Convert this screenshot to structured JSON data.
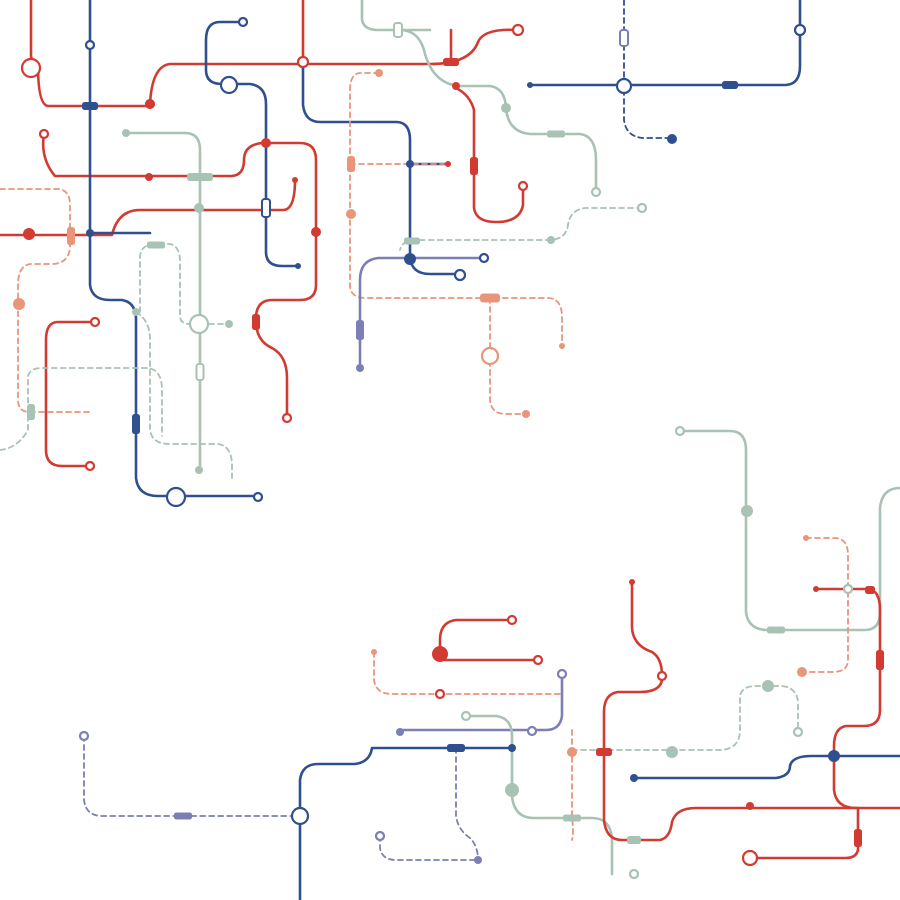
{
  "diagram": {
    "kind": "circuit-style line pattern",
    "labels": [],
    "palette": {
      "red": "#d23b32",
      "blue": "#2f4f8f",
      "sage": "#a8c2b4",
      "salmon": "#e8957a",
      "lavender": "#7c7fb4"
    },
    "background": "#ffffff"
  }
}
